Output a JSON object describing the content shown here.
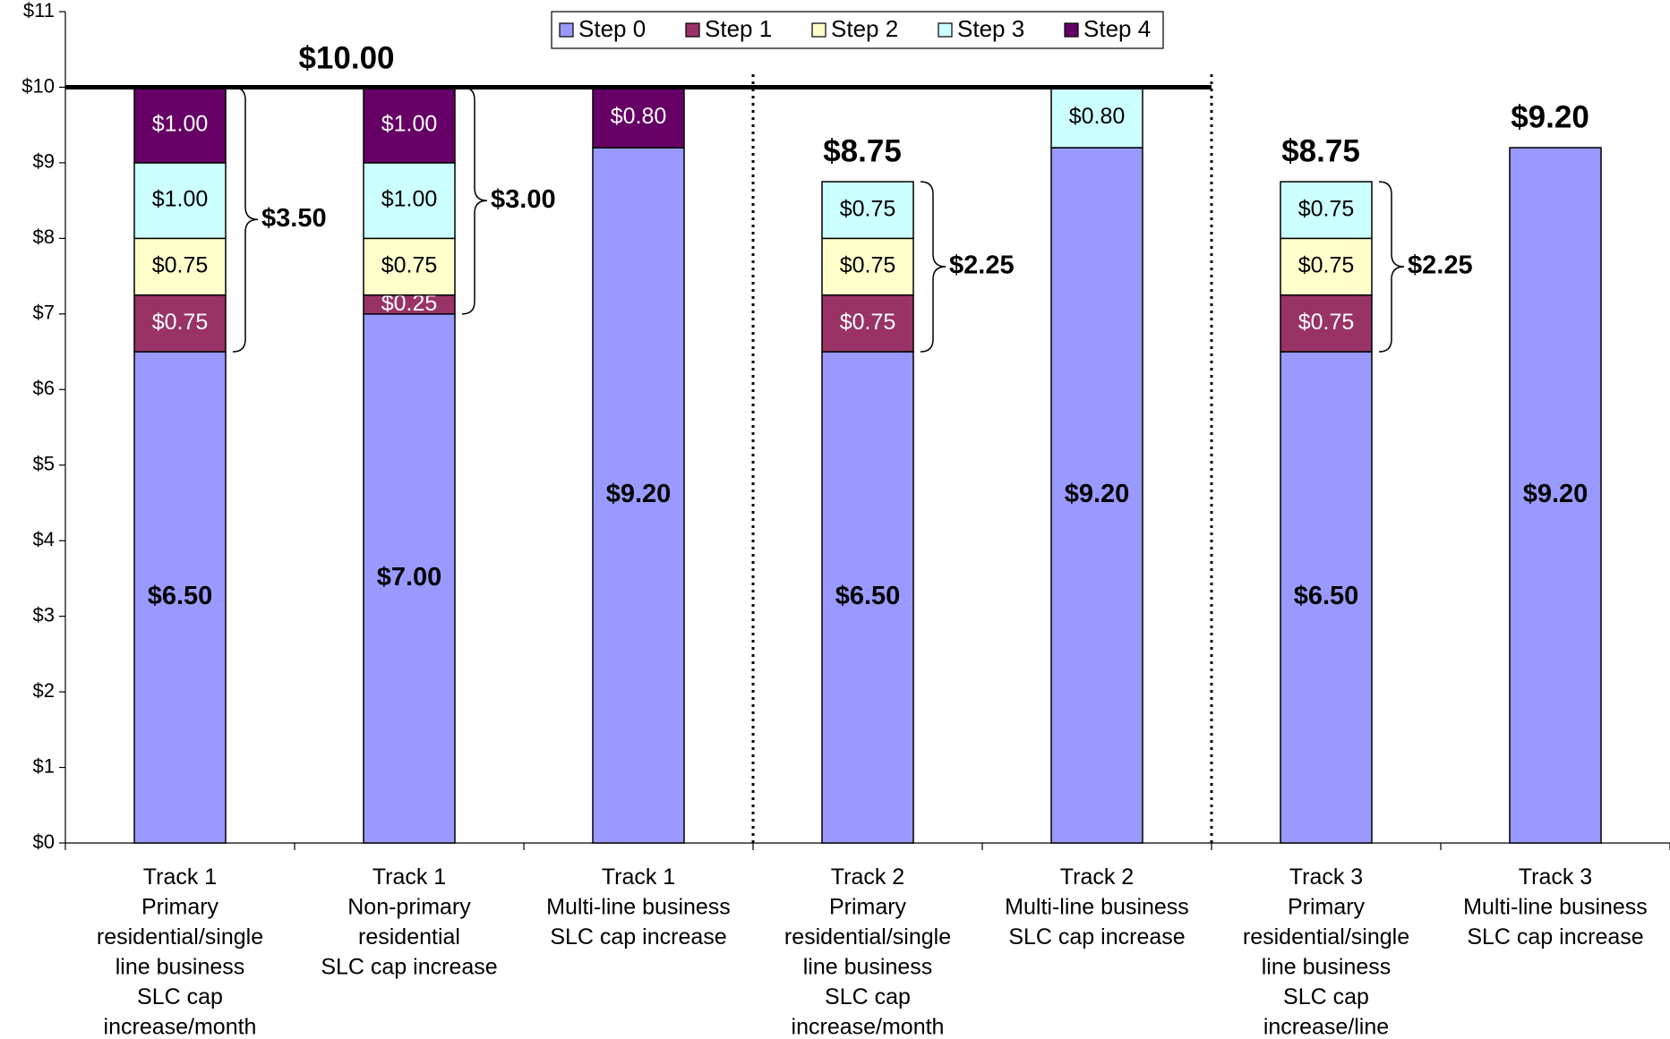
{
  "chart_data": {
    "type": "stacked_bar",
    "categories": [
      "Track 1\nPrimary\nresidential/single\nline business\nSLC cap\nincrease/month",
      "Track 1\nNon-primary\nresidential\nSLC cap increase",
      "Track 1\nMulti-line business\nSLC cap increase",
      "Track 2\nPrimary\nresidential/single\nline business\nSLC cap\nincrease/month",
      "Track 2\nMulti-line business\nSLC cap increase",
      "Track 3\nPrimary\nresidential/single\nline business\nSLC cap\nincrease/line",
      "Track 3\nMulti-line business\nSLC cap increase"
    ],
    "series": [
      {
        "name": "Step 0",
        "color": "#9999ff",
        "values": [
          6.5,
          7.0,
          9.2,
          6.5,
          9.2,
          6.5,
          9.2
        ],
        "value_labels": [
          "$6.50",
          "$7.00",
          "$9.20",
          "$6.50",
          "$9.20",
          "$6.50",
          "$9.20"
        ]
      },
      {
        "name": "Step 1",
        "color": "#993366",
        "values": [
          0.75,
          0.25,
          null,
          0.75,
          null,
          0.75,
          null
        ],
        "value_labels": [
          "$0.75",
          "$0.25",
          null,
          "$0.75",
          null,
          "$0.75",
          null
        ]
      },
      {
        "name": "Step 2",
        "color": "#ffffcc",
        "values": [
          0.75,
          0.75,
          null,
          0.75,
          null,
          0.75,
          null
        ],
        "value_labels": [
          "$0.75",
          "$0.75",
          null,
          "$0.75",
          null,
          "$0.75",
          null
        ]
      },
      {
        "name": "Step 3",
        "color": "#ccffff",
        "values": [
          1.0,
          1.0,
          null,
          0.75,
          0.8,
          0.75,
          null
        ],
        "value_labels": [
          "$1.00",
          "$1.00",
          null,
          "$0.75",
          "$0.80",
          "$0.75",
          null
        ]
      },
      {
        "name": "Step 4",
        "color": "#660066",
        "values": [
          1.0,
          1.0,
          0.8,
          null,
          null,
          null,
          null
        ],
        "value_labels": [
          "$1.00",
          "$1.00",
          "$0.80",
          null,
          null,
          null,
          null
        ]
      }
    ],
    "totals": [
      null,
      null,
      null,
      "$8.75",
      null,
      "$8.75",
      "$9.20"
    ],
    "braces": [
      "$3.50",
      "$3.00",
      null,
      "$2.25",
      null,
      "$2.25",
      null
    ],
    "reference_line": {
      "value": 10,
      "label": "$10.00"
    },
    "ylim": [
      0,
      11
    ],
    "yticks": [
      {
        "value": 0,
        "label": "$0"
      },
      {
        "value": 1,
        "label": "$1"
      },
      {
        "value": 2,
        "label": "$2"
      },
      {
        "value": 3,
        "label": "$3"
      },
      {
        "value": 4,
        "label": "$4"
      },
      {
        "value": 5,
        "label": "$5"
      },
      {
        "value": 6,
        "label": "$6"
      },
      {
        "value": 7,
        "label": "$7"
      },
      {
        "value": 8,
        "label": "$8"
      },
      {
        "value": 9,
        "label": "$9"
      },
      {
        "value": 10,
        "label": "$10"
      },
      {
        "value": 11,
        "label": "$11"
      }
    ],
    "legend": "top"
  }
}
